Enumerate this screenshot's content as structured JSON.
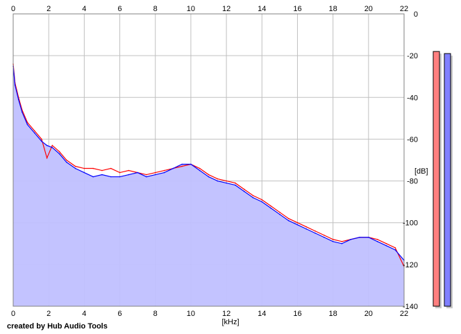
{
  "chart_data": {
    "type": "line",
    "title": "",
    "xlabel": "[kHz]",
    "ylabel": "[dB]",
    "xlim": [
      0,
      22
    ],
    "ylim": [
      -140,
      0
    ],
    "x_ticks": [
      0,
      2,
      4,
      6,
      8,
      10,
      12,
      14,
      16,
      18,
      20,
      22
    ],
    "y_ticks": [
      0,
      -20,
      -40,
      -60,
      -80,
      -100,
      -120,
      -140
    ],
    "grid": true,
    "legend": "none",
    "series": [
      {
        "color": "#ff0000",
        "x": [
          0,
          0.1,
          0.3,
          0.5,
          0.8,
          1.2,
          1.6,
          1.9,
          2.2,
          2.6,
          3.0,
          3.5,
          4.0,
          4.5,
          5.0,
          5.5,
          6.0,
          6.5,
          7.0,
          7.5,
          8.0,
          8.5,
          9.0,
          9.5,
          10.0,
          10.5,
          11.0,
          11.5,
          12.0,
          12.5,
          13.0,
          13.5,
          14.0,
          14.5,
          15.0,
          15.5,
          16.0,
          16.5,
          17.0,
          17.5,
          18.0,
          18.5,
          19.0,
          19.5,
          20.0,
          20.5,
          21.0,
          21.5,
          22.0
        ],
        "values": [
          -24,
          -33,
          -40,
          -46,
          -52,
          -56,
          -60,
          -69,
          -63,
          -66,
          -70,
          -73,
          -74,
          -74,
          -75,
          -74,
          -76,
          -75,
          -76,
          -77,
          -76,
          -75,
          -74,
          -73,
          -72,
          -74,
          -77,
          -79,
          -80,
          -81,
          -84,
          -87,
          -89,
          -92,
          -95,
          -98,
          -100,
          -102,
          -104,
          -106,
          -108,
          -109,
          -108,
          -107,
          -107,
          -108,
          -110,
          -112,
          -121
        ]
      },
      {
        "color": "#0000ff",
        "x": [
          0,
          0.1,
          0.3,
          0.5,
          0.8,
          1.2,
          1.6,
          1.9,
          2.2,
          2.6,
          3.0,
          3.5,
          4.0,
          4.5,
          5.0,
          5.5,
          6.0,
          6.5,
          7.0,
          7.5,
          8.0,
          8.5,
          9.0,
          9.5,
          10.0,
          10.5,
          11.0,
          11.5,
          12.0,
          12.5,
          13.0,
          13.5,
          14.0,
          14.5,
          15.0,
          15.5,
          16.0,
          16.5,
          17.0,
          17.5,
          18.0,
          18.5,
          19.0,
          19.5,
          20.0,
          20.5,
          21.0,
          21.5,
          22.0
        ],
        "values": [
          -25,
          -34,
          -41,
          -47,
          -53,
          -57,
          -61,
          -63,
          -64,
          -67,
          -71,
          -74,
          -76,
          -78,
          -77,
          -78,
          -78,
          -77,
          -76,
          -78,
          -77,
          -76,
          -74,
          -72,
          -72,
          -75,
          -78,
          -80,
          -81,
          -82,
          -85,
          -88,
          -90,
          -93,
          -96,
          -99,
          -101,
          -103,
          -105,
          -107,
          -109,
          -110,
          -108,
          -107,
          -107,
          -109,
          -111,
          -113,
          -118
        ]
      }
    ],
    "level_meters": [
      {
        "color": "#ff8080",
        "level_db": -18
      },
      {
        "color": "#8080ff",
        "level_db": -19
      }
    ],
    "fill_color": "#c0c0ff"
  },
  "footer": {
    "credit": "created by Hub Audio Tools"
  }
}
